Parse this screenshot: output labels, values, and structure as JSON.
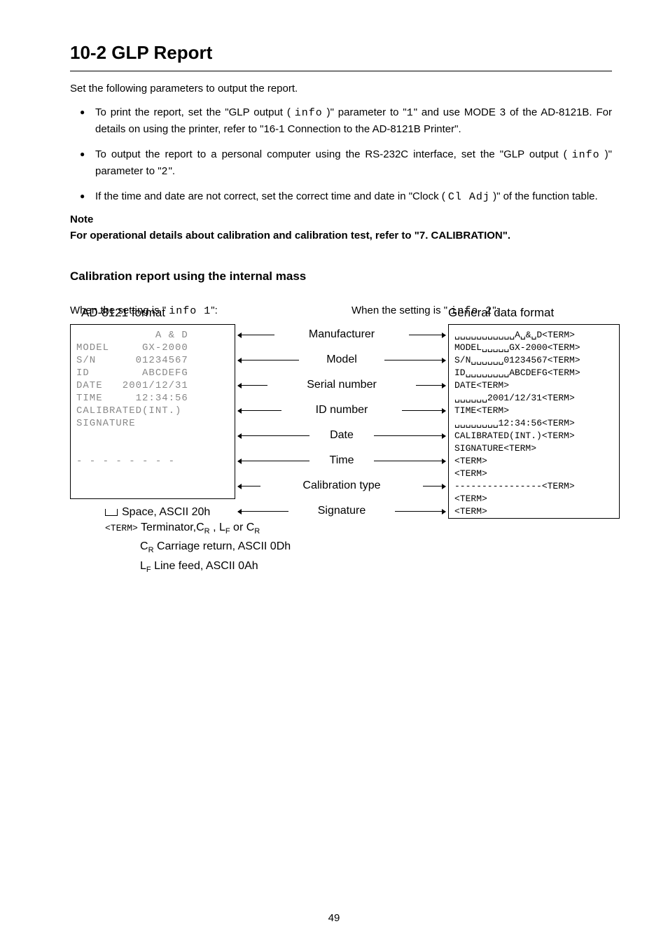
{
  "heading": "10-2  GLP Report",
  "intro": "Set the following parameters to output the report.",
  "bullets": [
    {
      "pre": "To print the report, set the \"GLP output ( ",
      "seg": "info",
      "mid": " )\" parameter to \"",
      "seg2": "1",
      "post": "\" and use MODE 3 of the AD-8121B. For details on using the printer, refer to \"16-1 Connection to the AD-8121B Printer\"."
    },
    {
      "pre": "To output the report to a personal computer using the RS-232C interface, set the \"GLP output ( ",
      "seg": "info",
      "mid": " )\" parameter to \"",
      "seg2": "2",
      "post": "\"."
    },
    {
      "pre": "If the time and date are not correct, set the correct time and date in \"Clock ( ",
      "seg": "Cl Adj",
      "mid": "",
      "seg2": "",
      "post": " )\" of the function table."
    }
  ],
  "note_label": "Note",
  "note_text": "For operational details about calibration and calibration test, refer to \"7. CALIBRATION\".",
  "subhead": "Calibration report using the internal mass",
  "left_when_pre": "When the setting is \" ",
  "left_when_seg": "info  1",
  "left_when_post": "\":",
  "right_when_pre": "When the setting is \" ",
  "right_when_seg": "info  2",
  "right_when_post": "\":",
  "left_title": "AD-8121 format",
  "right_title": "General data format",
  "left_box": "            A & D\nMODEL     GX-2000\nS/N      01234567\nID        ABCDEFG\nDATE   2001/12/31\nTIME     12:34:56\nCALIBRATED(INT.)\nSIGNATURE\n\n\n- - - - - - - -",
  "right_box": "␣␣␣␣␣␣␣␣␣␣␣A␣&␣D<TERM>\nMODEL␣␣␣␣␣GX-2000<TERM>\nS/N␣␣␣␣␣␣01234567<TERM>\nID␣␣␣␣␣␣␣␣ABCDEFG<TERM>\nDATE<TERM>\n␣␣␣␣␣␣2001/12/31<TERM>\nTIME<TERM>\n␣␣␣␣␣␣␣␣12:34:56<TERM>\nCALIBRATED(INT.)<TERM>\nSIGNATURE<TERM>\n<TERM>\n<TERM>\n----------------<TERM>\n<TERM>\n<TERM>",
  "mids": [
    {
      "t": "Manufacturer",
      "l": 40,
      "r": 40
    },
    {
      "t": "Model",
      "l": 75,
      "r": 75
    },
    {
      "t": "Serial number",
      "l": 30,
      "r": 30
    },
    {
      "t": "ID number",
      "l": 50,
      "r": 50
    },
    {
      "t": "Date",
      "l": 90,
      "r": 90
    },
    {
      "t": "Time",
      "l": 90,
      "r": 90
    },
    {
      "t": "Calibration type",
      "l": 20,
      "r": 20
    },
    {
      "t": "Signature",
      "l": 60,
      "r": 60
    }
  ],
  "legend": {
    "l1": "Space, ASCII 20h",
    "l2a": "<TERM>",
    "l2b": " Terminator,",
    "l2c": "C",
    "l2d": "R",
    "l2e": " , ",
    "l2f": "L",
    "l2g": "F",
    "l2h": " or ",
    "l2i": "C",
    "l2j": "R",
    "l3a": "C",
    "l3b": "R",
    "l3c": " Carriage  return, ASCII 0Dh",
    "l4a": "L",
    "l4b": "F",
    "l4c": " Line feed, ASCII 0Ah"
  },
  "pagenum": "49"
}
